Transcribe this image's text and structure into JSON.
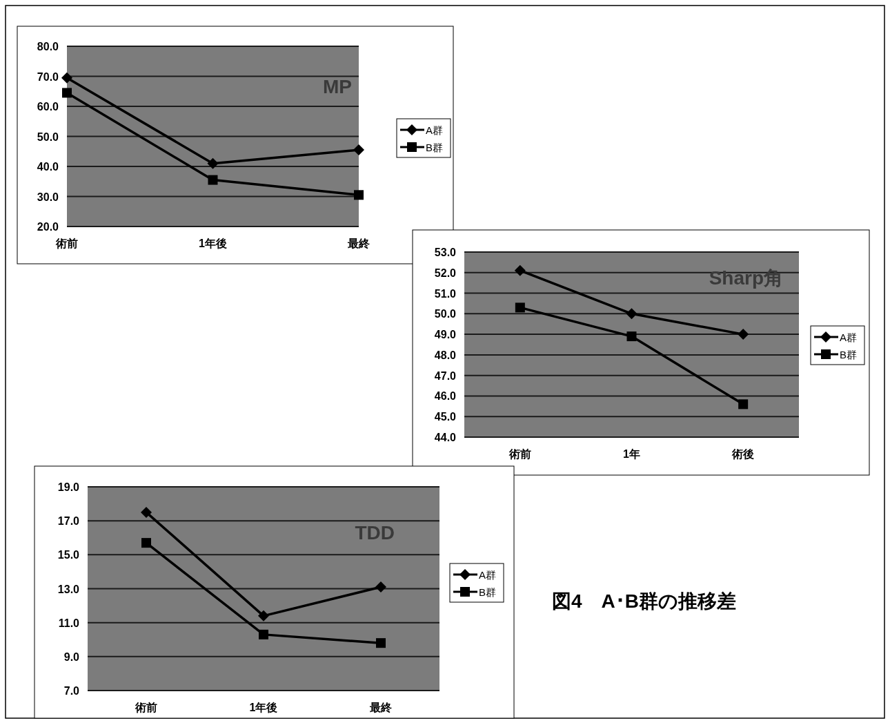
{
  "chart_data": [
    {
      "type": "line",
      "title": "MP",
      "categories": [
        "術前",
        "1年後",
        "最終"
      ],
      "ylim": [
        20,
        80
      ],
      "yticks": [
        {
          "value": 20,
          "label": "20.0"
        },
        {
          "value": 30,
          "label": "30.0"
        },
        {
          "value": 40,
          "label": "40.0"
        },
        {
          "value": 50,
          "label": "50.0"
        },
        {
          "value": 60,
          "label": "60.0"
        },
        {
          "value": 70,
          "label": "70.0"
        },
        {
          "value": 80,
          "label": "80.0"
        }
      ],
      "grid": "y",
      "legend": "right",
      "series": [
        {
          "name": "A群",
          "color": "#000000",
          "marker": "diamond",
          "values": [
            69.5,
            41.0,
            45.5
          ]
        },
        {
          "name": "B群",
          "color": "#000000",
          "marker": "square",
          "values": [
            64.5,
            35.5,
            30.5
          ]
        }
      ]
    },
    {
      "type": "line",
      "title": "Sharp角",
      "categories": [
        "術前",
        "1年",
        "術後"
      ],
      "ylim": [
        44,
        53
      ],
      "yticks": [
        {
          "value": 44,
          "label": "44.0"
        },
        {
          "value": 45,
          "label": "45.0"
        },
        {
          "value": 46,
          "label": "46.0"
        },
        {
          "value": 47,
          "label": "47.0"
        },
        {
          "value": 48,
          "label": "48.0"
        },
        {
          "value": 49,
          "label": "49.0"
        },
        {
          "value": 50,
          "label": "50.0"
        },
        {
          "value": 51,
          "label": "51.0"
        },
        {
          "value": 52,
          "label": "52.0"
        },
        {
          "value": 53,
          "label": "53.0"
        }
      ],
      "grid": "y",
      "legend": "right",
      "series": [
        {
          "name": "A群",
          "color": "#000000",
          "marker": "diamond",
          "values": [
            52.1,
            50.0,
            49.0
          ]
        },
        {
          "name": "B群",
          "color": "#000000",
          "marker": "square",
          "values": [
            50.3,
            48.9,
            45.6
          ]
        }
      ]
    },
    {
      "type": "line",
      "title": "TDD",
      "categories": [
        "術前",
        "1年後",
        "最終"
      ],
      "ylim": [
        7,
        19
      ],
      "yticks": [
        {
          "value": 7,
          "label": "7.0"
        },
        {
          "value": 9,
          "label": "9.0"
        },
        {
          "value": 11,
          "label": "11.0"
        },
        {
          "value": 13,
          "label": "13.0"
        },
        {
          "value": 15,
          "label": "15.0"
        },
        {
          "value": 17,
          "label": "17.0"
        },
        {
          "value": 19,
          "label": "19.0"
        }
      ],
      "grid": "y",
      "legend": "right",
      "series": [
        {
          "name": "A群",
          "color": "#000000",
          "marker": "diamond",
          "values": [
            17.5,
            11.4,
            13.1
          ]
        },
        {
          "name": "B群",
          "color": "#000000",
          "marker": "square",
          "values": [
            15.7,
            10.3,
            9.8
          ]
        }
      ]
    },
    {
      "type": "other",
      "title": "図4　A･B群の推移差"
    }
  ]
}
